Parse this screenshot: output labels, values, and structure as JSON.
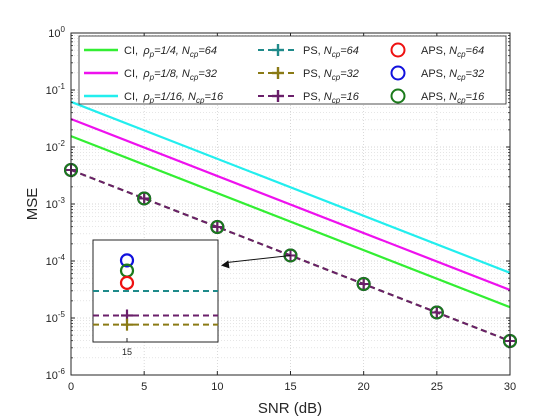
{
  "chart_data": {
    "type": "line",
    "xlabel": "SNR (dB)",
    "ylabel": "MSE",
    "xlim": [
      0,
      30
    ],
    "ylim": [
      1e-06,
      1
    ],
    "yscale": "log",
    "grid": true,
    "legend_position": "top",
    "x_ticks": [
      "0",
      "5",
      "10",
      "15",
      "20",
      "25",
      "30"
    ],
    "y_ticks": [
      {
        "base": "10",
        "exp": "-6"
      },
      {
        "base": "10",
        "exp": "-5"
      },
      {
        "base": "10",
        "exp": "-4"
      },
      {
        "base": "10",
        "exp": "-3"
      },
      {
        "base": "10",
        "exp": "-2"
      },
      {
        "base": "10",
        "exp": "-1"
      },
      {
        "base": "10",
        "exp": "0"
      }
    ],
    "series": [
      {
        "label": {
          "pre": "CI, ",
          "sym": "ρ",
          "sub": "p",
          "mid": "=1/4, ",
          "n": "N",
          "nsub": "cp",
          "post": "=64"
        },
        "color": "#33ee33",
        "style": "line",
        "x": [
          0,
          30
        ],
        "y": [
          0.0155,
          1.55e-05
        ]
      },
      {
        "label": {
          "pre": "CI, ",
          "sym": "ρ",
          "sub": "p",
          "mid": "=1/8, ",
          "n": "N",
          "nsub": "cp",
          "post": "=32"
        },
        "color": "#ee11ee",
        "style": "line",
        "x": [
          0,
          30
        ],
        "y": [
          0.031,
          3.1e-05
        ]
      },
      {
        "label": {
          "pre": "CI, ",
          "sym": "ρ",
          "sub": "p",
          "mid": "=1/16, ",
          "n": "N",
          "nsub": "cp",
          "post": "=16"
        },
        "color": "#22eeee",
        "style": "line",
        "x": [
          0,
          30
        ],
        "y": [
          0.062,
          6.2e-05
        ]
      },
      {
        "label": {
          "pre": "PS, ",
          "n": "N",
          "nsub": "cp",
          "post": "=64"
        },
        "color": "#1f8a8a",
        "style": "dashed-plus",
        "x": [
          0,
          5,
          10,
          15,
          20,
          25,
          30
        ],
        "y": [
          0.00395,
          0.00125,
          0.000395,
          0.000125,
          3.95e-05,
          1.25e-05,
          3.95e-06
        ]
      },
      {
        "label": {
          "pre": "PS, ",
          "n": "N",
          "nsub": "cp",
          "post": "=32"
        },
        "color": "#8a7a15",
        "style": "dashed-plus",
        "x": [
          0,
          5,
          10,
          15,
          20,
          25,
          30
        ],
        "y": [
          0.00395,
          0.00125,
          0.000395,
          0.000125,
          3.95e-05,
          1.25e-05,
          3.95e-06
        ]
      },
      {
        "label": {
          "pre": "PS, ",
          "n": "N",
          "nsub": "cp",
          "post": "=16"
        },
        "color": "#6a1f6a",
        "style": "dashed-plus",
        "x": [
          0,
          5,
          10,
          15,
          20,
          25,
          30
        ],
        "y": [
          0.00395,
          0.00125,
          0.000395,
          0.000125,
          3.95e-05,
          1.25e-05,
          3.95e-06
        ]
      },
      {
        "label": {
          "pre": "APS, ",
          "n": "N",
          "nsub": "cp",
          "post": "=64"
        },
        "color": "#ee1111",
        "style": "circle",
        "x": [
          0,
          5,
          10,
          15,
          20,
          25,
          30
        ],
        "y": [
          0.00395,
          0.00125,
          0.000395,
          0.000125,
          3.95e-05,
          1.25e-05,
          3.95e-06
        ]
      },
      {
        "label": {
          "pre": "APS, ",
          "n": "N",
          "nsub": "cp",
          "post": "=32"
        },
        "color": "#1111dd",
        "style": "circle",
        "x": [
          0,
          5,
          10,
          15,
          20,
          25,
          30
        ],
        "y": [
          0.00395,
          0.00125,
          0.000395,
          0.000125,
          3.95e-05,
          1.25e-05,
          3.95e-06
        ]
      },
      {
        "label": {
          "pre": "APS, ",
          "n": "N",
          "nsub": "cp",
          "post": "=16"
        },
        "color": "#1b7a1b",
        "style": "circle",
        "x": [
          0,
          5,
          10,
          15,
          20,
          25,
          30
        ],
        "y": [
          0.00395,
          0.00125,
          0.000395,
          0.000125,
          3.95e-05,
          1.25e-05,
          3.95e-06
        ]
      }
    ],
    "inset": {
      "x_tick": "15",
      "zoom_target": {
        "x": 15,
        "y": 0.000125
      },
      "items": [
        {
          "series": 7,
          "kind": "circle",
          "level": 0.2
        },
        {
          "series": 8,
          "kind": "circle",
          "level": 0.3
        },
        {
          "series": 6,
          "kind": "circle",
          "level": 0.42
        },
        {
          "series": 3,
          "kind": "dash",
          "level": 0.5
        },
        {
          "series": 5,
          "kind": "plus",
          "level": 0.74
        },
        {
          "series": 4,
          "kind": "plus",
          "level": 0.83
        }
      ]
    }
  }
}
